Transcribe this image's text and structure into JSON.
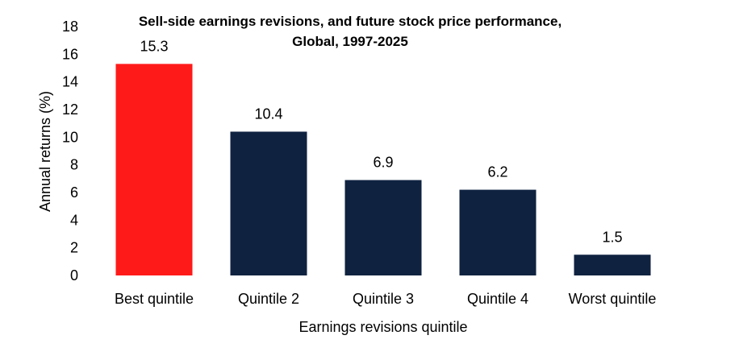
{
  "chart_data": {
    "type": "bar",
    "title": "Sell-side earnings revisions, and future stock price performance,",
    "subtitle": "Global, 1997-2025",
    "xlabel": "Earnings revisions quintile",
    "ylabel": "Annual returns (%)",
    "ylim": [
      0,
      18
    ],
    "yticks": [
      0,
      2,
      4,
      6,
      8,
      10,
      12,
      14,
      16,
      18
    ],
    "grid": false,
    "categories": [
      "Best quintile",
      "Quintile 2",
      "Quintile 3",
      "Quintile 4",
      "Worst quintile"
    ],
    "values": [
      15.3,
      10.4,
      6.9,
      6.2,
      1.5
    ],
    "value_labels": [
      "15.3",
      "10.4",
      "6.9",
      "6.2",
      "1.5"
    ],
    "colors": [
      "#ff1a1a",
      "#0f2240",
      "#0f2240",
      "#0f2240",
      "#0f2240"
    ]
  }
}
